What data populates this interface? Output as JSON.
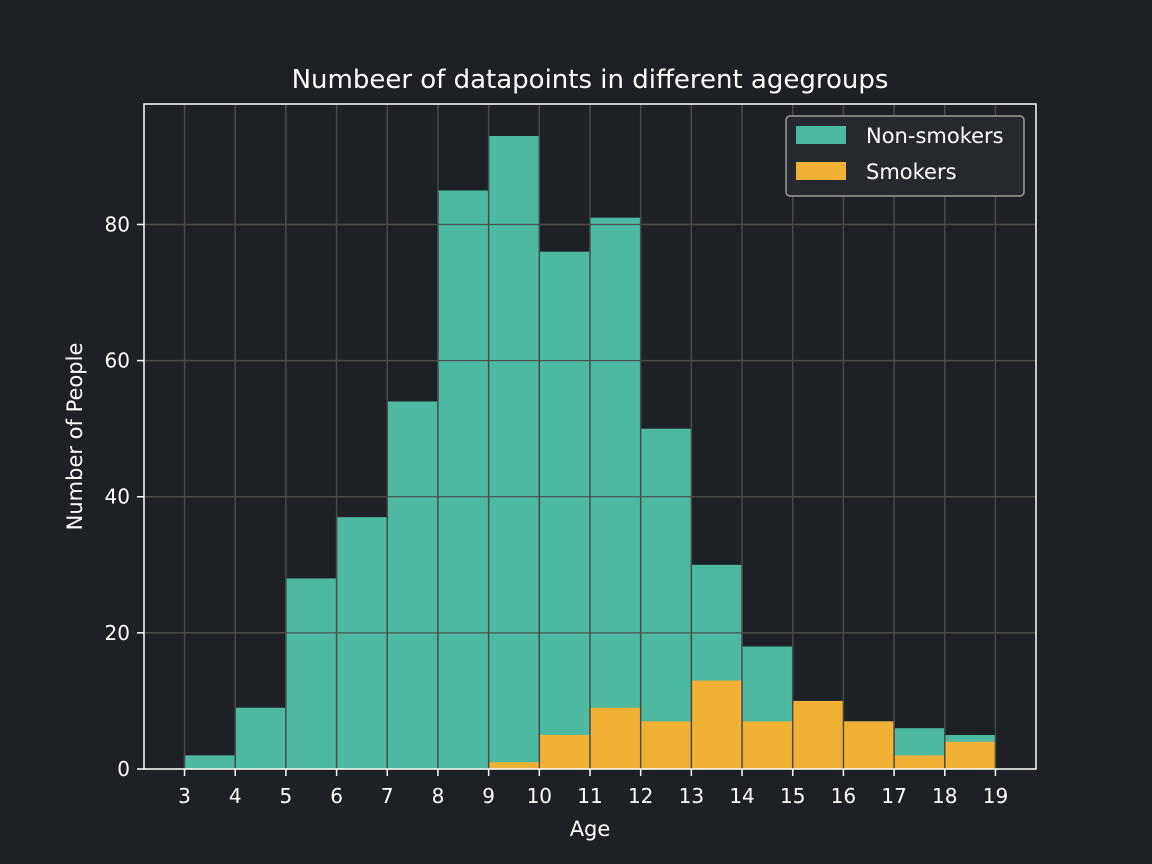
{
  "chart_data": {
    "type": "bar",
    "stacking": "overlay",
    "title": "Numbeer of datapoints in different agegroups",
    "xlabel": "Age",
    "ylabel": "Number of People",
    "bin_edges": [
      3,
      4,
      5,
      6,
      7,
      8,
      9,
      10,
      11,
      12,
      13,
      14,
      15,
      16,
      17,
      18,
      19
    ],
    "xticks": [
      3,
      4,
      5,
      6,
      7,
      8,
      9,
      10,
      11,
      12,
      13,
      14,
      15,
      16,
      17,
      18,
      19
    ],
    "yticks": [
      0,
      20,
      40,
      60,
      80
    ],
    "xlim": [
      2.2,
      19.8
    ],
    "ylim": [
      0,
      97.7
    ],
    "grid": true,
    "legend_position": "top-right",
    "series": [
      {
        "name": "Non-smokers",
        "color": "#4cb9a0",
        "values": [
          2,
          9,
          28,
          37,
          54,
          85,
          93,
          76,
          81,
          50,
          30,
          18,
          10,
          7,
          6,
          5
        ]
      },
      {
        "name": "Smokers",
        "color": "#f0b135",
        "values": [
          0,
          0,
          0,
          0,
          0,
          0,
          1,
          5,
          9,
          7,
          13,
          7,
          10,
          7,
          2,
          4
        ]
      }
    ],
    "colors": {
      "background": "#1d2024",
      "grid": "#4a4a4a",
      "axis": "#ffffff",
      "text": "#ffffff"
    }
  }
}
